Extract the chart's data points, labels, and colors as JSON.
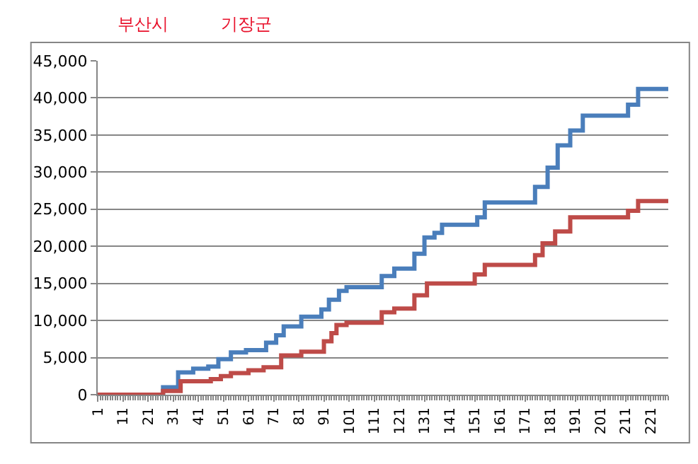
{
  "chart_data": {
    "type": "step",
    "annotations": [
      "부산시",
      "기장군"
    ],
    "xlim": [
      1,
      228
    ],
    "xticks": [
      1,
      11,
      21,
      31,
      41,
      51,
      61,
      71,
      81,
      91,
      101,
      111,
      121,
      131,
      141,
      151,
      161,
      171,
      181,
      191,
      201,
      211,
      221
    ],
    "ylim": [
      0,
      45000
    ],
    "yticks": [
      0,
      {
        "value": 5000,
        "label": "5,000"
      },
      {
        "value": 10000,
        "label": "10,000"
      },
      {
        "value": 15000,
        "label": "15,000"
      },
      {
        "value": 20000,
        "label": "20,000"
      },
      {
        "value": 25000,
        "label": "25,000"
      },
      {
        "value": 30000,
        "label": "30,000"
      },
      {
        "value": 35000,
        "label": "35,000"
      },
      {
        "value": 40000,
        "label": "40,000"
      },
      {
        "value": 45000,
        "label": "45,000"
      }
    ],
    "grid": "y",
    "marker": "none",
    "line_style": "solid",
    "series": [
      {
        "color": "#4a7ebb",
        "x": [
          1,
          27,
          33,
          39,
          45,
          49,
          54,
          60,
          68,
          72,
          75,
          82,
          90,
          93,
          97,
          100,
          114,
          119,
          127,
          131,
          135,
          138,
          152,
          155,
          175,
          180,
          184,
          189,
          194,
          212,
          216,
          228
        ],
        "values": [
          0,
          1000,
          3000,
          3500,
          3800,
          4800,
          5700,
          6000,
          7000,
          8000,
          9200,
          10500,
          11500,
          12800,
          14000,
          14500,
          16000,
          17000,
          19000,
          21200,
          21800,
          22900,
          23900,
          25900,
          28000,
          30600,
          33600,
          35600,
          37600,
          39100,
          41200,
          41200
        ]
      },
      {
        "color": "#be4b48",
        "x": [
          1,
          27,
          34,
          46,
          50,
          54,
          61,
          67,
          74,
          82,
          91,
          94,
          96,
          100,
          114,
          119,
          127,
          132,
          151,
          155,
          175,
          178,
          183,
          189,
          212,
          216,
          228
        ],
        "values": [
          0,
          500,
          1800,
          2100,
          2500,
          2900,
          3300,
          3700,
          5300,
          5800,
          7200,
          8300,
          9400,
          9700,
          11100,
          11600,
          13400,
          15000,
          16200,
          17500,
          18800,
          20400,
          22000,
          23900,
          24800,
          26100,
          26100
        ]
      }
    ]
  }
}
